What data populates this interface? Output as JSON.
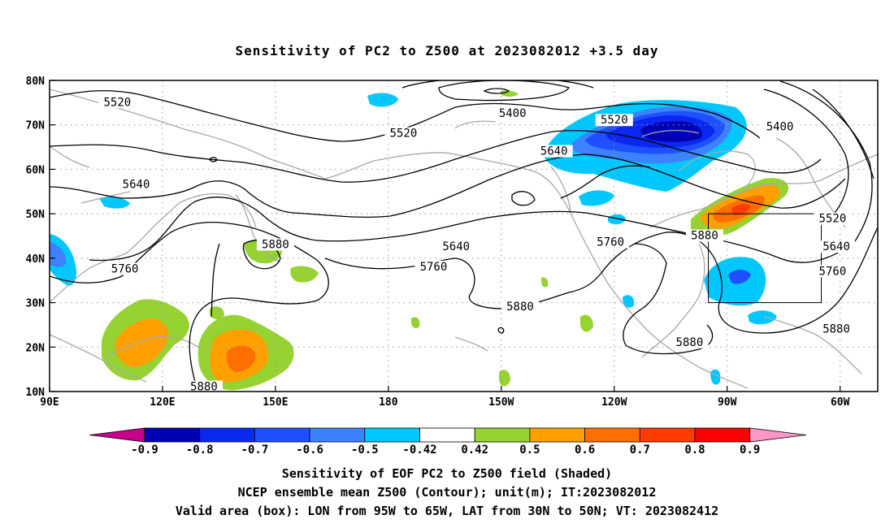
{
  "title": "Sensitivity of PC2 to Z500 at 2023082012 +3.5 day",
  "footer": {
    "line1": "Sensitivity of EOF PC2 to Z500 field (Shaded)",
    "line2": "NCEP ensemble mean Z500 (Contour); unit(m); IT:2023082012",
    "line3": "Valid area (box): LON from 95W to 65W, LAT from 30N to 50N; VT: 2023082412"
  },
  "map": {
    "lat_labels": [
      "80N",
      "70N",
      "60N",
      "50N",
      "40N",
      "30N",
      "20N",
      "10N"
    ],
    "lat_values": [
      80,
      70,
      60,
      50,
      40,
      30,
      20,
      10
    ],
    "lon_labels": [
      "90E",
      "120E",
      "150E",
      "180",
      "150W",
      "120W",
      "90W",
      "60W"
    ],
    "lon_values": [
      90,
      120,
      150,
      180,
      210,
      240,
      270,
      300
    ],
    "lon_range": [
      90,
      310
    ],
    "lat_range": [
      10,
      80
    ],
    "valid_box": {
      "lon": [
        265,
        295
      ],
      "lat": [
        30,
        50
      ]
    },
    "contour_labels": [
      {
        "text": "5520",
        "lon": 108,
        "lat": 75
      },
      {
        "text": "5400",
        "lon": 213,
        "lat": 72.5
      },
      {
        "text": "5520",
        "lon": 240,
        "lat": 71
      },
      {
        "text": "5400",
        "lon": 284,
        "lat": 69.5
      },
      {
        "text": "5520",
        "lon": 184,
        "lat": 68
      },
      {
        "text": "5640",
        "lon": 224,
        "lat": 64
      },
      {
        "text": "5640",
        "lon": 113,
        "lat": 56.5
      },
      {
        "text": "5520",
        "lon": 298,
        "lat": 48.8
      },
      {
        "text": "5880",
        "lon": 150,
        "lat": 43
      },
      {
        "text": "5640",
        "lon": 198,
        "lat": 42.5
      },
      {
        "text": "5760",
        "lon": 239,
        "lat": 43.5
      },
      {
        "text": "5880",
        "lon": 264,
        "lat": 45
      },
      {
        "text": "5640",
        "lon": 299,
        "lat": 42.5
      },
      {
        "text": "5760",
        "lon": 110,
        "lat": 37.5
      },
      {
        "text": "5760",
        "lon": 192,
        "lat": 38
      },
      {
        "text": "5760",
        "lon": 298,
        "lat": 37
      },
      {
        "text": "5880",
        "lon": 215,
        "lat": 29
      },
      {
        "text": "5880",
        "lon": 299,
        "lat": 24
      },
      {
        "text": "5880",
        "lon": 260,
        "lat": 21
      },
      {
        "text": "5880",
        "lon": 131,
        "lat": 11
      }
    ]
  },
  "colorbar": {
    "labels": [
      "-0.9",
      "-0.8",
      "-0.7",
      "-0.6",
      "-0.5",
      "-0.42",
      "0.42",
      "0.5",
      "0.6",
      "0.7",
      "0.8",
      "0.9"
    ],
    "colors": [
      "#0000b4",
      "#0a28f0",
      "#1e50ff",
      "#3c82ff",
      "#00c8ff",
      "#ffffff",
      "#96d232",
      "#ffa000",
      "#ff6e00",
      "#ff3c00",
      "#ff0000"
    ],
    "left_triangle_color": "#c8008c",
    "right_triangle_color": "#ff96c8"
  },
  "chart_data": {
    "type": "heatmap",
    "title": "Sensitivity of PC2 to Z500 at 2023082012 +3.5 day",
    "x_ticks": [
      "90E",
      "120E",
      "150E",
      "180",
      "150W",
      "120W",
      "90W",
      "60W"
    ],
    "y_ticks": [
      "80N",
      "70N",
      "60N",
      "50N",
      "40N",
      "30N",
      "20N",
      "10N"
    ],
    "contour_levels_m": [
      5400,
      5520,
      5640,
      5760,
      5880
    ],
    "shading_levels": [
      -0.9,
      -0.8,
      -0.7,
      -0.6,
      -0.5,
      -0.42,
      0.42,
      0.5,
      0.6,
      0.7,
      0.8,
      0.9
    ],
    "valid_area": {
      "lon": [
        "95W",
        "65W"
      ],
      "lat": [
        "30N",
        "50N"
      ]
    },
    "grid": true
  }
}
